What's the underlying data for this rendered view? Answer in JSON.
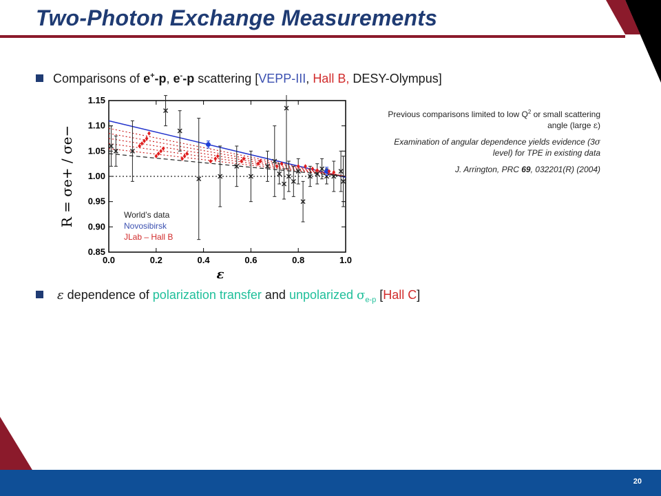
{
  "slide": {
    "title": "Two-Photon Exchange Measurements",
    "page_number": "20",
    "colors": {
      "title": "#1f3b73",
      "accent": "#8b1a2b",
      "footer": "#0f4f97",
      "blue": "#3a4fb0",
      "red": "#d12b2b",
      "teal": "#1fbf9a"
    }
  },
  "bullet1": {
    "t1": "Comparisons of ",
    "t2": "e",
    "t2_sup": "+",
    "t3": "-p",
    "t4": ", ",
    "t5": "e",
    "t5_sup": "-",
    "t6": "-p",
    "t7": " scattering [",
    "t8": "VEPP-III",
    "t9": ", ",
    "t10": "Hall B,",
    "t11": " DESY-Olympus]"
  },
  "bullet2": {
    "eps": "ε",
    "t1": " dependence of ",
    "t2": "polarization transfer",
    "t3": " and ",
    "t4": "unpolarized ",
    "sigma": "σ",
    "sigma_sub": "e-p",
    "t5": " [",
    "t6": "Hall C",
    "t7": "]"
  },
  "notes": {
    "n1a": "Previous comparisons limited to low Q",
    "n1_sup": "2",
    "n1b": " or small scattering angle (large ",
    "n1_eps": "ε",
    "n1c": ")",
    "n2a": "Examination of angular dependence yields evidence (3",
    "n2_sigma": "σ",
    "n2b": " level) for TPE in existing data",
    "n3a": "J. Arrington, PRC ",
    "n3_vol": "69",
    "n3b": ", 032201(R) (2004)"
  },
  "chart_data": {
    "type": "scatter",
    "xlabel": "ε",
    "ylabel": "R = σe+ / σe−",
    "xlim": [
      0.0,
      1.0
    ],
    "ylim": [
      0.85,
      1.15
    ],
    "x_ticks": [
      "0.0",
      "0.2",
      "0.4",
      "0.6",
      "0.8",
      "1.0"
    ],
    "y_ticks": [
      "0.85",
      "0.90",
      "0.95",
      "1.00",
      "1.05",
      "1.10",
      "1.15"
    ],
    "legend": [
      "World’s data",
      "Novosibirsk",
      "JLab – Hall B"
    ],
    "legend_placement": "bottom-left",
    "series": [
      {
        "name": "World’s data",
        "color": "#222222",
        "marker": "x",
        "points": [
          {
            "x": 0.01,
            "y": 1.06,
            "err": 0.04
          },
          {
            "x": 0.03,
            "y": 1.05,
            "err": 0.03
          },
          {
            "x": 0.1,
            "y": 1.05,
            "err": 0.06
          },
          {
            "x": 0.24,
            "y": 1.13,
            "err": 0.03
          },
          {
            "x": 0.3,
            "y": 1.09,
            "err": 0.04
          },
          {
            "x": 0.38,
            "y": 0.995,
            "err": 0.12
          },
          {
            "x": 0.47,
            "y": 1.0,
            "err": 0.06
          },
          {
            "x": 0.54,
            "y": 1.02,
            "err": 0.04
          },
          {
            "x": 0.6,
            "y": 1.0,
            "err": 0.05
          },
          {
            "x": 0.67,
            "y": 1.02,
            "err": 0.03
          },
          {
            "x": 0.7,
            "y": 1.03,
            "err": 0.07
          },
          {
            "x": 0.72,
            "y": 1.005,
            "err": 0.02
          },
          {
            "x": 0.74,
            "y": 0.985,
            "err": 0.03
          },
          {
            "x": 0.75,
            "y": 1.135,
            "err": 0.12
          },
          {
            "x": 0.76,
            "y": 1.0,
            "err": 0.03
          },
          {
            "x": 0.78,
            "y": 0.99,
            "err": 0.03
          },
          {
            "x": 0.8,
            "y": 1.01,
            "err": 0.025
          },
          {
            "x": 0.82,
            "y": 0.95,
            "err": 0.04
          },
          {
            "x": 0.85,
            "y": 1.0,
            "err": 0.02
          },
          {
            "x": 0.88,
            "y": 1.005,
            "err": 0.02
          },
          {
            "x": 0.9,
            "y": 1.015,
            "err": 0.02
          },
          {
            "x": 0.92,
            "y": 1.0,
            "err": 0.015
          },
          {
            "x": 0.95,
            "y": 1.0,
            "err": 0.03
          },
          {
            "x": 0.98,
            "y": 1.01,
            "err": 0.04
          },
          {
            "x": 0.99,
            "y": 0.99,
            "err": 0.05
          }
        ]
      },
      {
        "name": "Novosibirsk",
        "color": "#1f3fd8",
        "marker": "circle",
        "points": [
          {
            "x": 0.42,
            "y": 1.063,
            "err": 0.007
          },
          {
            "x": 0.92,
            "y": 1.01,
            "err": 0.008
          }
        ]
      },
      {
        "name": "JLab – Hall B",
        "color": "#e01e1e",
        "marker": "diamond",
        "points": [
          {
            "x": 0.13,
            "y": 1.06
          },
          {
            "x": 0.14,
            "y": 1.065
          },
          {
            "x": 0.15,
            "y": 1.07
          },
          {
            "x": 0.16,
            "y": 1.075
          },
          {
            "x": 0.17,
            "y": 1.085
          },
          {
            "x": 0.2,
            "y": 1.04
          },
          {
            "x": 0.21,
            "y": 1.045
          },
          {
            "x": 0.22,
            "y": 1.05
          },
          {
            "x": 0.23,
            "y": 1.055
          },
          {
            "x": 0.31,
            "y": 1.035
          },
          {
            "x": 0.32,
            "y": 1.04
          },
          {
            "x": 0.33,
            "y": 1.045
          },
          {
            "x": 0.43,
            "y": 1.03
          },
          {
            "x": 0.45,
            "y": 1.035
          },
          {
            "x": 0.46,
            "y": 1.04
          },
          {
            "x": 0.56,
            "y": 1.03
          },
          {
            "x": 0.57,
            "y": 1.035
          },
          {
            "x": 0.63,
            "y": 1.025
          },
          {
            "x": 0.64,
            "y": 1.03
          },
          {
            "x": 0.71,
            "y": 1.02
          },
          {
            "x": 0.73,
            "y": 1.025
          },
          {
            "x": 0.8,
            "y": 1.02
          },
          {
            "x": 0.83,
            "y": 1.02
          },
          {
            "x": 0.86,
            "y": 1.015
          },
          {
            "x": 0.88,
            "y": 1.012
          },
          {
            "x": 0.93,
            "y": 1.01
          },
          {
            "x": 0.95,
            "y": 1.008
          }
        ]
      }
    ],
    "lines": [
      {
        "color": "#2233cc",
        "style": "solid",
        "x": [
          0.0,
          1.0
        ],
        "y": [
          1.11,
          0.998
        ]
      },
      {
        "color": "#cc2222",
        "style": "dotted",
        "x": [
          0.0,
          1.0
        ],
        "y": [
          1.095,
          1.0
        ]
      },
      {
        "color": "#cc2222",
        "style": "dotted",
        "x": [
          0.0,
          1.0
        ],
        "y": [
          1.085,
          1.0
        ]
      },
      {
        "color": "#cc2222",
        "style": "dotted",
        "x": [
          0.0,
          1.0
        ],
        "y": [
          1.075,
          1.0
        ]
      },
      {
        "color": "#cc2222",
        "style": "dotted",
        "x": [
          0.0,
          1.0
        ],
        "y": [
          1.065,
          1.0
        ]
      },
      {
        "color": "#cc2222",
        "style": "dotted",
        "x": [
          0.0,
          1.0
        ],
        "y": [
          1.055,
          1.0
        ]
      },
      {
        "color": "#222222",
        "style": "dashed",
        "x": [
          0.0,
          1.0
        ],
        "y": [
          1.045,
          1.0
        ]
      },
      {
        "color": "#222222",
        "style": "dotted",
        "x": [
          0.0,
          1.0
        ],
        "y": [
          1.0,
          1.0
        ]
      }
    ]
  }
}
